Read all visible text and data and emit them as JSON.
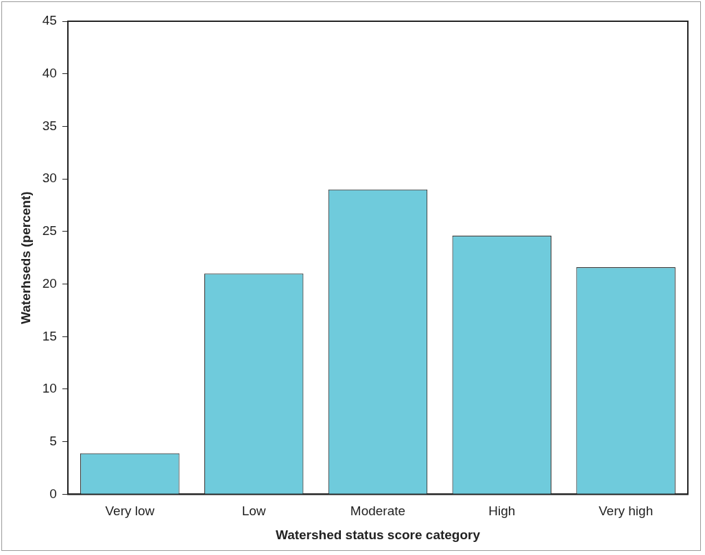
{
  "chart_data": {
    "type": "bar",
    "xlabel": "Watershed status score category",
    "ylabel": "Waterhseds (percent)",
    "categories": [
      "Very low",
      "Low",
      "Moderate",
      "High",
      "Very high"
    ],
    "values": [
      3.9,
      21.0,
      29.0,
      24.6,
      21.6
    ],
    "color": "#6fcbdc",
    "ylim": [
      0,
      45
    ],
    "yticks": [
      0,
      5,
      10,
      15,
      20,
      25,
      30,
      35,
      40,
      45
    ],
    "grid": false,
    "legend": false
  }
}
